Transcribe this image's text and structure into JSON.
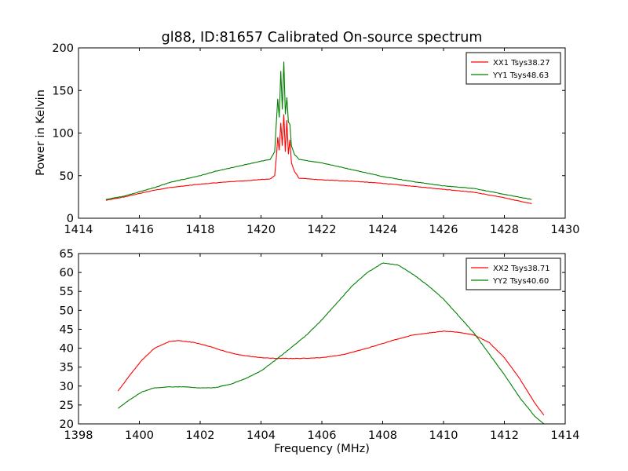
{
  "chart_data": [
    {
      "type": "line",
      "title": "gl88, ID:81657 Calibrated On-source spectrum",
      "xlabel": "",
      "ylabel": "Power in Kelvin",
      "xlim": [
        1414,
        1430
      ],
      "ylim": [
        0,
        200
      ],
      "xticks": [
        1414,
        1416,
        1418,
        1420,
        1422,
        1424,
        1426,
        1428,
        1430
      ],
      "yticks": [
        0,
        50,
        100,
        150,
        200
      ],
      "legend_position": "top-right",
      "series": [
        {
          "name": "XX1 Tsys38.27",
          "color": "#ff0000",
          "points": [
            [
              1414.9,
              21
            ],
            [
              1415.5,
              25
            ],
            [
              1416,
              29
            ],
            [
              1416.5,
              33
            ],
            [
              1417,
              36
            ],
            [
              1417.5,
              38
            ],
            [
              1418,
              40
            ],
            [
              1418.5,
              41.5
            ],
            [
              1419,
              43
            ],
            [
              1419.5,
              44
            ],
            [
              1420,
              45.5
            ],
            [
              1420.3,
              46
            ],
            [
              1420.45,
              50
            ],
            [
              1420.5,
              70
            ],
            [
              1420.55,
              95
            ],
            [
              1420.6,
              80
            ],
            [
              1420.65,
              112
            ],
            [
              1420.7,
              85
            ],
            [
              1420.75,
              122
            ],
            [
              1420.8,
              78
            ],
            [
              1420.85,
              115
            ],
            [
              1420.9,
              75
            ],
            [
              1420.95,
              92
            ],
            [
              1421.0,
              65
            ],
            [
              1421.1,
              55
            ],
            [
              1421.25,
              47
            ],
            [
              1422,
              45
            ],
            [
              1423,
              43.5
            ],
            [
              1424,
              41
            ],
            [
              1425,
              37.5
            ],
            [
              1426,
              34
            ],
            [
              1427,
              30.5
            ],
            [
              1428,
              24
            ],
            [
              1428.9,
              17
            ]
          ]
        },
        {
          "name": "YY1 Tsys48.63",
          "color": "#008000",
          "points": [
            [
              1414.9,
              22
            ],
            [
              1415.5,
              26
            ],
            [
              1416,
              31
            ],
            [
              1416.5,
              36
            ],
            [
              1417,
              42
            ],
            [
              1417.5,
              46
            ],
            [
              1418,
              50
            ],
            [
              1418.5,
              55
            ],
            [
              1419,
              59
            ],
            [
              1419.5,
              63
            ],
            [
              1420,
              67
            ],
            [
              1420.3,
              69
            ],
            [
              1420.45,
              78
            ],
            [
              1420.5,
              110
            ],
            [
              1420.55,
              140
            ],
            [
              1420.6,
              118
            ],
            [
              1420.65,
              173
            ],
            [
              1420.7,
              128
            ],
            [
              1420.75,
              184
            ],
            [
              1420.8,
              122
            ],
            [
              1420.85,
              142
            ],
            [
              1420.9,
              113
            ],
            [
              1420.95,
              110
            ],
            [
              1421.0,
              85
            ],
            [
              1421.1,
              75
            ],
            [
              1421.25,
              69
            ],
            [
              1422,
              65
            ],
            [
              1423,
              57
            ],
            [
              1424,
              49
            ],
            [
              1425,
              43
            ],
            [
              1426,
              38
            ],
            [
              1427,
              35
            ],
            [
              1428,
              28
            ],
            [
              1428.9,
              22
            ]
          ]
        }
      ]
    },
    {
      "type": "line",
      "title": "",
      "xlabel": "Frequency (MHz)",
      "ylabel": "",
      "xlim": [
        1398,
        1414
      ],
      "ylim": [
        20,
        65
      ],
      "xticks": [
        1398,
        1400,
        1402,
        1404,
        1406,
        1408,
        1410,
        1412,
        1414
      ],
      "yticks": [
        20,
        25,
        30,
        35,
        40,
        45,
        50,
        55,
        60,
        65
      ],
      "legend_position": "top-right",
      "series": [
        {
          "name": "XX2 Tsys38.71",
          "color": "#ff0000",
          "points": [
            [
              1399.3,
              28.7
            ],
            [
              1399.7,
              33
            ],
            [
              1400.1,
              37
            ],
            [
              1400.5,
              40
            ],
            [
              1401,
              41.8
            ],
            [
              1401.3,
              42
            ],
            [
              1401.8,
              41.5
            ],
            [
              1402.3,
              40.5
            ],
            [
              1402.8,
              39.2
            ],
            [
              1403.3,
              38.2
            ],
            [
              1404,
              37.5
            ],
            [
              1404.5,
              37.3
            ],
            [
              1405.3,
              37.3
            ],
            [
              1406,
              37.5
            ],
            [
              1406.7,
              38.3
            ],
            [
              1407.5,
              40
            ],
            [
              1408.3,
              42
            ],
            [
              1409,
              43.5
            ],
            [
              1409.5,
              44
            ],
            [
              1410,
              44.5
            ],
            [
              1410.5,
              44.2
            ],
            [
              1411,
              43.5
            ],
            [
              1411.5,
              41.5
            ],
            [
              1412,
              37.5
            ],
            [
              1412.5,
              32
            ],
            [
              1413,
              25.5
            ],
            [
              1413.3,
              22.3
            ]
          ]
        },
        {
          "name": "YY2 Tsys40.60",
          "color": "#008000",
          "points": [
            [
              1399.3,
              24.1
            ],
            [
              1399.7,
              26.5
            ],
            [
              1400.1,
              28.5
            ],
            [
              1400.5,
              29.5
            ],
            [
              1401,
              29.8
            ],
            [
              1401.5,
              29.8
            ],
            [
              1402,
              29.5
            ],
            [
              1402.5,
              29.6
            ],
            [
              1403,
              30.5
            ],
            [
              1403.5,
              32
            ],
            [
              1404,
              34
            ],
            [
              1404.5,
              37
            ],
            [
              1405,
              40.2
            ],
            [
              1405.5,
              43.5
            ],
            [
              1406,
              47.5
            ],
            [
              1406.5,
              52
            ],
            [
              1407,
              56.5
            ],
            [
              1407.5,
              60
            ],
            [
              1408,
              62.5
            ],
            [
              1408.5,
              62
            ],
            [
              1409,
              59.5
            ],
            [
              1409.5,
              56.5
            ],
            [
              1410,
              53
            ],
            [
              1410.5,
              48.5
            ],
            [
              1411,
              44
            ],
            [
              1411.5,
              38.5
            ],
            [
              1412,
              33
            ],
            [
              1412.5,
              27
            ],
            [
              1413,
              22
            ],
            [
              1413.3,
              20
            ]
          ]
        }
      ]
    }
  ]
}
